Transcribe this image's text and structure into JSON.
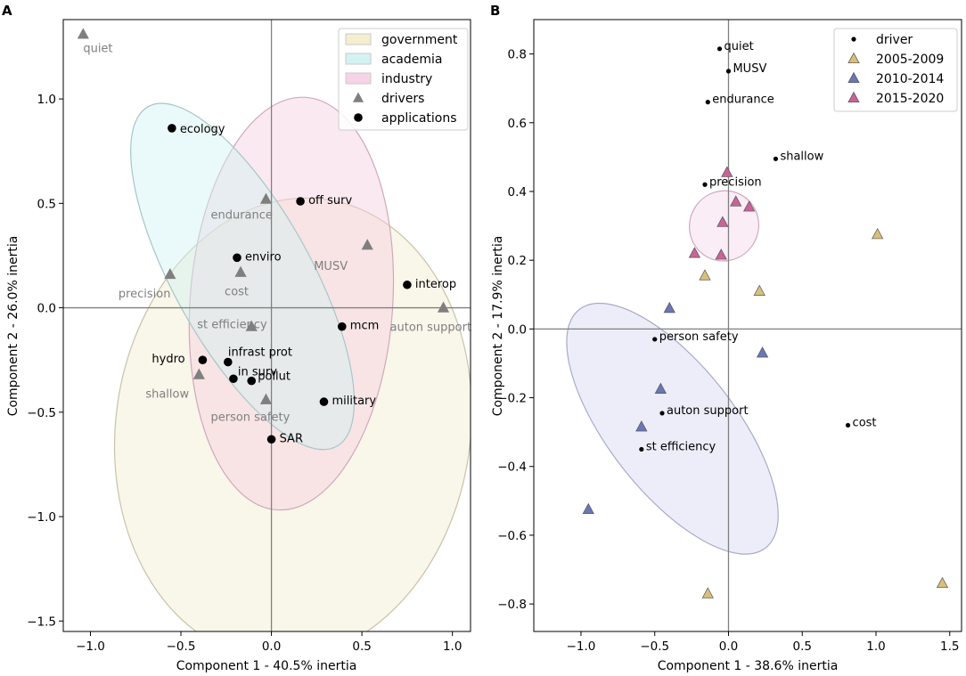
{
  "chart_data": [
    {
      "type": "scatter",
      "panel_label": "A",
      "xlabel": "Component 1 - 40.5% inertia",
      "ylabel": "Component 2 - 26.0% inertia",
      "xlim": [
        -1.15,
        1.1
      ],
      "ylim": [
        -1.55,
        1.38
      ],
      "xticks": [
        -1.0,
        -0.5,
        0.0,
        0.5,
        1.0
      ],
      "xtick_labels": [
        "−1.0",
        "−0.5",
        "0.0",
        "0.5",
        "1.0"
      ],
      "yticks": [
        -1.5,
        -1.0,
        -0.5,
        0.0,
        0.5,
        1.0
      ],
      "ytick_labels": [
        "−1.5",
        "−1.0",
        "−0.5",
        "0.0",
        "0.5",
        "1.0"
      ],
      "legend": {
        "placement": "top-right",
        "entries": [
          {
            "label": "government",
            "kind": "patch",
            "color": "#f5efcf"
          },
          {
            "label": "academia",
            "kind": "patch",
            "color": "#d3f3f3"
          },
          {
            "label": "industry",
            "kind": "patch",
            "color": "#f6d3e6"
          },
          {
            "label": "drivers",
            "kind": "triangle",
            "color": "#7f7f7f"
          },
          {
            "label": "applications",
            "kind": "circle",
            "color": "#000000"
          }
        ]
      },
      "ellipses": [
        {
          "name": "government",
          "cx": 0.12,
          "cy": -0.58,
          "rx": 0.98,
          "ry": 1.11,
          "angle_deg": -8,
          "fill": "#f2ead0",
          "stroke": "#c9c3a8"
        },
        {
          "name": "industry",
          "cx": 0.11,
          "cy": 0.02,
          "rx": 0.56,
          "ry": 0.99,
          "angle_deg": -4,
          "fill": "#f6cfe0",
          "stroke": "#cfa9bb"
        },
        {
          "name": "academia",
          "cx": -0.16,
          "cy": 0.15,
          "rx": 0.38,
          "ry": 0.93,
          "angle_deg": 29,
          "fill": "#d1f1f2",
          "stroke": "#a8c6c8"
        }
      ],
      "drivers": [
        {
          "label": "quiet",
          "x": -1.04,
          "y": 1.31
        },
        {
          "label": "endurance",
          "x": -0.03,
          "y": 0.52
        },
        {
          "label": "MUSV",
          "x": 0.53,
          "y": 0.3
        },
        {
          "label": "precision",
          "x": -0.56,
          "y": 0.16
        },
        {
          "label": "cost",
          "x": -0.17,
          "y": 0.17
        },
        {
          "label": "auton support",
          "x": 0.95,
          "y": 0.0
        },
        {
          "label": "st efficiency",
          "x": -0.11,
          "y": -0.09
        },
        {
          "label": "shallow",
          "x": -0.4,
          "y": -0.32
        },
        {
          "label": "person safety",
          "x": -0.03,
          "y": -0.44
        }
      ],
      "applications": [
        {
          "label": "ecology",
          "x": -0.55,
          "y": 0.86
        },
        {
          "label": "off surv",
          "x": 0.16,
          "y": 0.51
        },
        {
          "label": "enviro",
          "x": -0.19,
          "y": 0.24
        },
        {
          "label": "interop",
          "x": 0.75,
          "y": 0.11
        },
        {
          "label": "mcm",
          "x": 0.39,
          "y": -0.09
        },
        {
          "label": "hydro",
          "x": -0.38,
          "y": -0.25
        },
        {
          "label": "infrast prot",
          "x": -0.24,
          "y": -0.26
        },
        {
          "label": "in surv",
          "x": -0.21,
          "y": -0.34
        },
        {
          "label": "pollut",
          "x": -0.11,
          "y": -0.35
        },
        {
          "label": "military",
          "x": 0.29,
          "y": -0.45
        },
        {
          "label": "SAR",
          "x": 0.0,
          "y": -0.63
        }
      ]
    },
    {
      "type": "scatter",
      "panel_label": "B",
      "xlabel": "Component 1 - 38.6% inertia",
      "ylabel": "Component 2 - 17.9% inertia",
      "xlim": [
        -1.32,
        1.58
      ],
      "ylim": [
        -0.88,
        0.9
      ],
      "xticks": [
        -1.0,
        -0.5,
        0.0,
        0.5,
        1.0,
        1.5
      ],
      "xtick_labels": [
        "−1.0",
        "−0.5",
        "0.0",
        "0.5",
        "1.0",
        "1.5"
      ],
      "yticks": [
        -0.8,
        -0.6,
        -0.4,
        -0.2,
        0.0,
        0.2,
        0.4,
        0.6,
        0.8
      ],
      "ytick_labels": [
        "−0.8",
        "−0.6",
        "−0.4",
        "−0.2",
        "0.0",
        "0.2",
        "0.4",
        "0.6",
        "0.8"
      ],
      "legend": {
        "placement": "top-right",
        "entries": [
          {
            "label": "driver",
            "kind": "dot",
            "color": "#000000"
          },
          {
            "label": "2005-2009",
            "kind": "triangle",
            "color": "#d9c07a"
          },
          {
            "label": "2010-2014",
            "kind": "triangle",
            "color": "#6a76b8"
          },
          {
            "label": "2015-2020",
            "kind": "triangle",
            "color": "#c96496"
          }
        ]
      },
      "ellipses": [
        {
          "name": "2010-2014",
          "cx": -0.38,
          "cy": -0.29,
          "rx": 0.43,
          "ry": 0.44,
          "angle_deg": 38,
          "fill": "#d6d8f1",
          "stroke": "#a8abc9"
        },
        {
          "name": "2015-2020",
          "cx": -0.03,
          "cy": 0.3,
          "rx": 0.24,
          "ry": 0.1,
          "angle_deg": 60,
          "fill": "#f4d6ea",
          "stroke": "#cda9bf"
        }
      ],
      "drivers": [
        {
          "label": "quiet",
          "x": -0.06,
          "y": 0.815
        },
        {
          "label": "MUSV",
          "x": 0.0,
          "y": 0.75
        },
        {
          "label": "endurance",
          "x": -0.14,
          "y": 0.66
        },
        {
          "label": "shallow",
          "x": 0.32,
          "y": 0.495
        },
        {
          "label": "precision",
          "x": -0.16,
          "y": 0.42
        },
        {
          "label": "person safety",
          "x": -0.5,
          "y": -0.03
        },
        {
          "label": "auton support",
          "x": -0.45,
          "y": -0.245
        },
        {
          "label": "cost",
          "x": 0.81,
          "y": -0.28
        },
        {
          "label": "st efficiency",
          "x": -0.59,
          "y": -0.35
        }
      ],
      "series": [
        {
          "name": "2005-2009",
          "color": "#d9c07a",
          "points": [
            [
              1.01,
              0.275
            ],
            [
              -0.16,
              0.155
            ],
            [
              0.21,
              0.11
            ],
            [
              1.45,
              -0.74
            ],
            [
              -0.14,
              -0.77
            ]
          ]
        },
        {
          "name": "2010-2014",
          "color": "#6a76b8",
          "points": [
            [
              -0.4,
              0.06
            ],
            [
              0.23,
              -0.07
            ],
            [
              -0.46,
              -0.175
            ],
            [
              -0.59,
              -0.285
            ],
            [
              -0.95,
              -0.525
            ]
          ]
        },
        {
          "name": "2015-2020",
          "color": "#c96496",
          "points": [
            [
              -0.01,
              0.455
            ],
            [
              0.05,
              0.37
            ],
            [
              0.14,
              0.355
            ],
            [
              -0.04,
              0.31
            ],
            [
              -0.23,
              0.22
            ],
            [
              -0.05,
              0.215
            ]
          ]
        }
      ]
    }
  ]
}
